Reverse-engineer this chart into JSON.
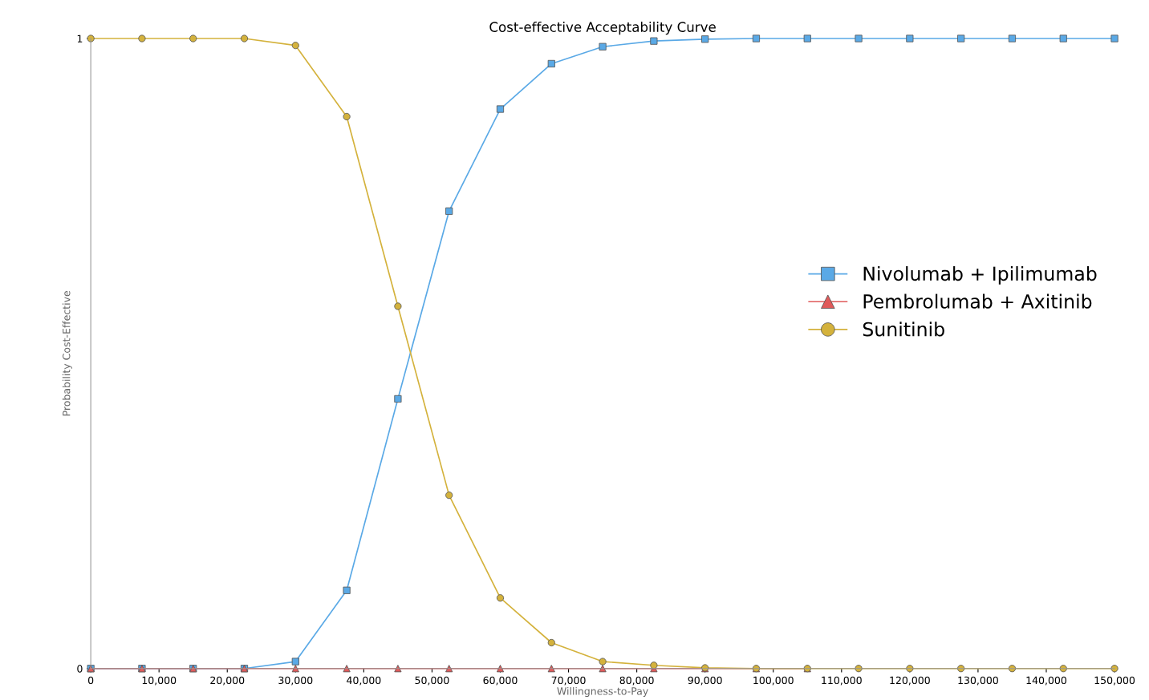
{
  "chart_data": {
    "type": "line",
    "title": "Cost-effective Acceptability Curve",
    "xlabel": "Willingness-to-Pay",
    "ylabel": "Probability Cost-Effective",
    "x": [
      0,
      7500,
      15000,
      22500,
      30000,
      37500,
      45000,
      52500,
      60000,
      67500,
      75000,
      82500,
      90000,
      97500,
      105000,
      112500,
      120000,
      127500,
      135000,
      142500,
      150000
    ],
    "series": [
      {
        "name": "Nivolumab + Ipilimumab",
        "color": "#5aa9e6",
        "marker": "square",
        "values": [
          0,
          0,
          0,
          0,
          0.011,
          0.124,
          0.428,
          0.726,
          0.888,
          0.96,
          0.987,
          0.996,
          0.999,
          1,
          1,
          1,
          1,
          1,
          1,
          1,
          1
        ]
      },
      {
        "name": "Pembrolumab + Axitinib",
        "color": "#e05a5a",
        "marker": "triangle",
        "values": [
          0,
          0,
          0,
          0,
          0,
          0,
          0,
          0,
          0,
          0,
          0,
          0,
          0,
          0,
          0,
          null,
          null,
          null,
          null,
          null,
          null
        ]
      },
      {
        "name": "Sunitinib",
        "color": "#d4b23c",
        "marker": "circle",
        "values": [
          1,
          1,
          1,
          1,
          0.989,
          0.876,
          0.575,
          0.275,
          0.112,
          0.041,
          0.011,
          0.005,
          0.001,
          0,
          0,
          0,
          0,
          0,
          0,
          0,
          0
        ]
      }
    ],
    "xlim": [
      0,
      150000
    ],
    "ylim": [
      0,
      1
    ],
    "xticks": [
      0,
      {
        "value": 10000,
        "label": "10,000"
      },
      {
        "value": 20000,
        "label": "20,000"
      },
      {
        "value": 30000,
        "label": "30,000"
      },
      {
        "value": 40000,
        "label": "40,000"
      },
      {
        "value": 50000,
        "label": "50,000"
      },
      {
        "value": 60000,
        "label": "60,000"
      },
      {
        "value": 70000,
        "label": "70,000"
      },
      {
        "value": 80000,
        "label": "80,000"
      },
      {
        "value": 90000,
        "label": "90,000"
      },
      {
        "value": 100000,
        "label": "100,000"
      },
      {
        "value": 110000,
        "label": "110,000"
      },
      {
        "value": 120000,
        "label": "120,000"
      },
      {
        "value": 130000,
        "label": "130,000"
      },
      {
        "value": 140000,
        "label": "140,000"
      },
      {
        "value": 150000,
        "label": "150,000"
      }
    ],
    "yticks": [
      0,
      1
    ],
    "grid": false,
    "legend": "right",
    "line_style": "solid"
  }
}
